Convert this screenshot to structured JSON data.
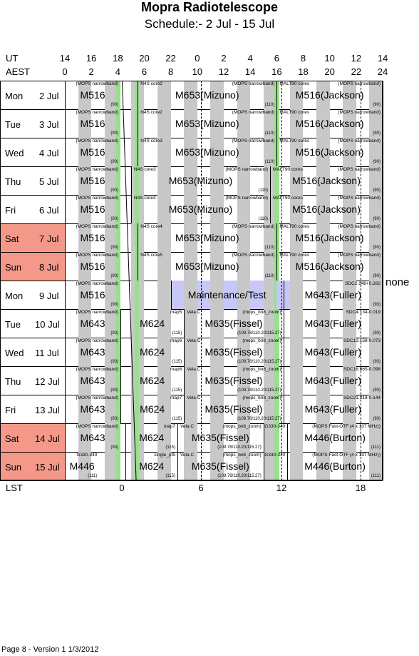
{
  "title": "Mopra Radiotelescope",
  "subtitle": "Schedule:- 2  Jul - 15 Jul",
  "axis": {
    "ut_label": "UT",
    "aest_label": "AEST",
    "lst_label": "LST",
    "ut_ticks": [
      "14",
      "16",
      "18",
      "20",
      "22",
      "0",
      "2",
      "4",
      "6",
      "8",
      "10",
      "12",
      "14"
    ],
    "aest_ticks": [
      "0",
      "2",
      "4",
      "6",
      "8",
      "10",
      "12",
      "14",
      "16",
      "18",
      "20",
      "22",
      "24"
    ],
    "lst_ticks": [
      "0",
      "6",
      "12",
      "18"
    ]
  },
  "side_note": "none",
  "footer": "Page 8 - Version 1  1/3/2012",
  "colors": {
    "weekend": "#f4998a",
    "gray": "#c8c8c8",
    "green": "#98e08c",
    "maintenance": "#c8c8f8"
  },
  "chart_data": {
    "type": "table",
    "rows": [
      {
        "day": "Mon",
        "date": "2",
        "month": "Jul",
        "weekend": false,
        "blocks": [
          {
            "start": 0,
            "end": 4.2,
            "proj": "M516",
            "note": "(MOPS narrowband)",
            "code": "(90)"
          },
          {
            "start": 5.5,
            "end": 16,
            "proj": "M653(Mizuno)",
            "note": "(MOPS narrowband)",
            "code": "(110)",
            "note2": "N4S core2"
          },
          {
            "start": 16,
            "end": 24,
            "proj": "M516(Jackson)",
            "note": "(MOPS narrowband)",
            "code": "(90)",
            "note2": "MALT90 cores"
          }
        ]
      },
      {
        "day": "Tue",
        "date": "3",
        "month": "Jul",
        "weekend": false,
        "blocks": [
          {
            "start": 0,
            "end": 4.2,
            "proj": "M516",
            "note": "(MOPS narrowband)",
            "code": "(90)"
          },
          {
            "start": 5.5,
            "end": 16,
            "proj": "M653(Mizuno)",
            "note": "(MOPS narrowband)",
            "code": "(110)",
            "note2": "N4S core2"
          },
          {
            "start": 16,
            "end": 24,
            "proj": "M516(Jackson)",
            "note": "(MOPS narrowband)",
            "code": "(90)",
            "note2": "MALT90 cores"
          }
        ]
      },
      {
        "day": "Wed",
        "date": "4",
        "month": "Jul",
        "weekend": false,
        "blocks": [
          {
            "start": 0,
            "end": 4.2,
            "proj": "M516",
            "note": "(MOPS narrowband)",
            "code": "(90)"
          },
          {
            "start": 5.5,
            "end": 16,
            "proj": "M653(Mizuno)",
            "note": "(MOPS narrowband)",
            "code": "(110)",
            "note2": "N4S core3"
          },
          {
            "start": 16,
            "end": 24,
            "proj": "M516(Jackson)",
            "note": "(MOPS narrowband)",
            "code": "(90)",
            "note2": "MALT90 cores"
          }
        ]
      },
      {
        "day": "Thu",
        "date": "5",
        "month": "Jul",
        "weekend": false,
        "blocks": [
          {
            "start": 0,
            "end": 4.2,
            "proj": "M516",
            "note": "(MOPS narrowband)",
            "code": "(90)"
          },
          {
            "start": 5.0,
            "end": 15.5,
            "proj": "M653(Mizuno)",
            "note": "(MOPS narrowband)",
            "code": "(110)",
            "note2": "N4S core3"
          },
          {
            "start": 15.5,
            "end": 24,
            "proj": "M516(Jackson)",
            "note": "(MOPS narrowband)",
            "code": "(90)",
            "note2": "MALT90 cores"
          }
        ]
      },
      {
        "day": "Fri",
        "date": "6",
        "month": "Jul",
        "weekend": false,
        "blocks": [
          {
            "start": 0,
            "end": 4.2,
            "proj": "M516",
            "note": "(MOPS narrowband)",
            "code": "(90)"
          },
          {
            "start": 5.0,
            "end": 15.5,
            "proj": "M653(Mizuno)",
            "note": "(MOPS narrowband)",
            "code": "(110)",
            "note2": "N4S core4"
          },
          {
            "start": 15.5,
            "end": 24,
            "proj": "M516(Jackson)",
            "note": "(MOPS narrowband)",
            "code": "(90)",
            "note2": "MALT90 cores"
          }
        ]
      },
      {
        "day": "Sat",
        "date": "7",
        "month": "Jul",
        "weekend": true,
        "blocks": [
          {
            "start": 0,
            "end": 4.2,
            "proj": "M516",
            "note": "(MOPS narrowband)",
            "code": "(90)"
          },
          {
            "start": 5.5,
            "end": 16,
            "proj": "M653(Mizuno)",
            "note": "(MOPS narrowband)",
            "code": "(110)",
            "note2": "N4S core4"
          },
          {
            "start": 16,
            "end": 24,
            "proj": "M516(Jackson)",
            "note": "(MOPS narrowband)",
            "code": "(90)",
            "note2": "MALT90 cores"
          }
        ]
      },
      {
        "day": "Sun",
        "date": "8",
        "month": "Jul",
        "weekend": true,
        "blocks": [
          {
            "start": 0,
            "end": 4.2,
            "proj": "M516",
            "note": "(MOPS narrowband)",
            "code": "(90)"
          },
          {
            "start": 5.5,
            "end": 16,
            "proj": "M653(Mizuno)",
            "note": "(MOPS narrowband)",
            "code": "(110)",
            "note2": "N4S core5"
          },
          {
            "start": 16,
            "end": 24,
            "proj": "M516(Jackson)",
            "note": "(MOPS narrowband)",
            "code": "(90)",
            "note2": "MALT90 cores"
          }
        ]
      },
      {
        "day": "Mon",
        "date": "9",
        "month": "Jul",
        "weekend": false,
        "blocks": [
          {
            "start": 0,
            "end": 4.2,
            "proj": "M516",
            "note": "(MOPS narrowband)",
            "code": "(90)"
          },
          {
            "start": 8.0,
            "end": 16.5,
            "proj": "Maintenance/Test",
            "note": "",
            "code": "",
            "maint": true
          },
          {
            "start": 16.5,
            "end": 24,
            "proj": "M643(Fuller)",
            "note": "SDC2.148+0.282",
            "code": "(93)"
          }
        ]
      },
      {
        "day": "Tue",
        "date": "10",
        "month": "Jul",
        "weekend": false,
        "blocks": [
          {
            "start": 0,
            "end": 4.2,
            "proj": "M643",
            "note": "(MOPS narrowband)",
            "code": "(93)"
          },
          {
            "start": 4.2,
            "end": 9.0,
            "proj": "M624",
            "note": "map5",
            "code": "(115)"
          },
          {
            "start": 9.0,
            "end": 16.5,
            "proj": "M635(Fissel)",
            "note": "(mops_bn8_zoom)",
            "code": "(109.78/110.20/115.27)",
            "note2": "Vela C"
          },
          {
            "start": 16.5,
            "end": 24,
            "proj": "M643(Fuller)",
            "note": "SDC4.134-0.019",
            "code": "(93)"
          }
        ]
      },
      {
        "day": "Wed",
        "date": "11",
        "month": "Jul",
        "weekend": false,
        "blocks": [
          {
            "start": 0,
            "end": 4.2,
            "proj": "M643",
            "note": "(MOPS narrowband)",
            "code": "(93)"
          },
          {
            "start": 4.2,
            "end": 9.0,
            "proj": "M624",
            "note": "map6",
            "code": "(115)"
          },
          {
            "start": 9.0,
            "end": 16.5,
            "proj": "M635(Fissel)",
            "note": "(mops_bn8_zoom)",
            "code": "(109.78/110.20/115.27)",
            "note2": "Vela C"
          },
          {
            "start": 16.5,
            "end": 24,
            "proj": "M643(Fuller)",
            "note": "SDC13.158-0.073",
            "code": "(93)"
          }
        ]
      },
      {
        "day": "Thu",
        "date": "12",
        "month": "Jul",
        "weekend": false,
        "blocks": [
          {
            "start": 0,
            "end": 4.2,
            "proj": "M643",
            "note": "(MOPS narrowband)",
            "code": "(93)"
          },
          {
            "start": 4.2,
            "end": 9.0,
            "proj": "M624",
            "note": "map6",
            "code": "(115)"
          },
          {
            "start": 9.0,
            "end": 16.5,
            "proj": "M635(Fissel)",
            "note": "(mops_bn8_zoom)",
            "code": "(109.78/110.20/115.27)",
            "note2": "Vela C"
          },
          {
            "start": 16.5,
            "end": 24,
            "proj": "M643(Fuller)",
            "note": "SDC16.865-0.098",
            "code": "(93)"
          }
        ]
      },
      {
        "day": "Fri",
        "date": "13",
        "month": "Jul",
        "weekend": false,
        "blocks": [
          {
            "start": 0,
            "end": 4.2,
            "proj": "M643",
            "note": "(MOPS narrowband)",
            "code": "(93)"
          },
          {
            "start": 4.2,
            "end": 9.0,
            "proj": "M624",
            "note": "map7",
            "code": "(115)"
          },
          {
            "start": 9.0,
            "end": 16.5,
            "proj": "M635(Fissel)",
            "note": "(mops_bn8_zoom)",
            "code": "(109.78/110.20/115.27)",
            "note2": "Vela C"
          },
          {
            "start": 16.5,
            "end": 24,
            "proj": "M643(Fuller)",
            "note": "SDC21.218-0.144",
            "code": "(93)"
          }
        ]
      },
      {
        "day": "Sat",
        "date": "14",
        "month": "Jul",
        "weekend": true,
        "blocks": [
          {
            "start": 0,
            "end": 4.2,
            "proj": "M643",
            "note": "(MOPS narrowband)",
            "code": "(93)"
          },
          {
            "start": 4.6,
            "end": 8.5,
            "proj": "M624",
            "note": "map7",
            "code": "(115)"
          },
          {
            "start": 8.5,
            "end": 15.0,
            "proj": "M635(Fissel)",
            "note": "(mops_bn8_zoom)",
            "code": "(109.78/110.20/115.27)",
            "note2": "Vela C"
          },
          {
            "start": 15.0,
            "end": 16.8,
            "proj": "",
            "note": "G330-340",
            "code": ""
          },
          {
            "start": 16.8,
            "end": 24,
            "proj": "M446(Burton)",
            "note": "(MOPS Fast-OTF (4 x 137 MHz))",
            "code": "(111)"
          }
        ]
      },
      {
        "day": "Sun",
        "date": "15",
        "month": "Jul",
        "weekend": true,
        "blocks": [
          {
            "start": 0,
            "end": 2.6,
            "proj": "M446",
            "note": "G330-340",
            "code": "(111)"
          },
          {
            "start": 4.6,
            "end": 8.5,
            "proj": "M624",
            "note": "single_pt5",
            "code": "(115)"
          },
          {
            "start": 8.5,
            "end": 15.0,
            "proj": "M635(Fissel)",
            "note": "(mops_bn8_zoom)",
            "code": "(109.78/110.20/115.27)",
            "note2": "Vela C"
          },
          {
            "start": 15.0,
            "end": 16.8,
            "proj": "",
            "note": "G330-340",
            "code": ""
          },
          {
            "start": 16.8,
            "end": 24,
            "proj": "M446(Burton)",
            "note": "(MOPS Fast-OTF (4 x 137 MHz))",
            "code": "(111)"
          }
        ]
      }
    ]
  }
}
